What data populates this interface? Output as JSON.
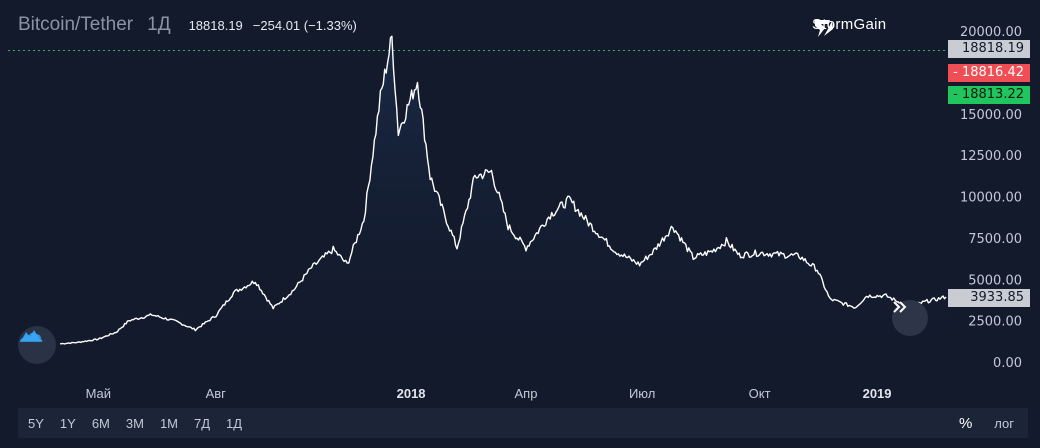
{
  "header": {
    "symbol": "Bitcoin/Tether",
    "interval": "1Д",
    "price": "18818.19",
    "change": "−254.01 (−1.33%)"
  },
  "brand": {
    "name": "StormGain"
  },
  "badges": {
    "last": "18818.19",
    "ask": "- 18816.42",
    "bid": "- 18813.22",
    "current": "3933.85"
  },
  "colors": {
    "background": "#131a2c",
    "line": "#ffffff",
    "area": "#1c3050",
    "ask": "#ef4e55",
    "bid": "#21c55d",
    "last_line": "#3aa86a"
  },
  "timeframes": [
    "5Y",
    "1Y",
    "6M",
    "3M",
    "1M",
    "7Д",
    "1Д"
  ],
  "options": {
    "percent": "%",
    "log": "лог"
  },
  "icons": {
    "scroll": "double-chevron-right-icon",
    "logo": "cloud-logo-icon",
    "brand": "lightning-icon"
  },
  "chart_data": {
    "type": "area",
    "ylim": [
      0,
      20000
    ],
    "y_ticks": [
      "20000.00",
      "15000.00",
      "12500.00",
      "10000.00",
      "7500.00",
      "5000.00",
      "2500.00",
      "0.00"
    ],
    "y_tick_values": [
      20000,
      15000,
      12500,
      10000,
      7500,
      5000,
      2500,
      0
    ],
    "x_ticks": [
      {
        "label": "Май",
        "date": "2017-05-01",
        "bold": false
      },
      {
        "label": "Авг",
        "date": "2017-08-01",
        "bold": false
      },
      {
        "label": "2018",
        "date": "2018-01-01",
        "bold": true
      },
      {
        "label": "Апр",
        "date": "2018-04-01",
        "bold": false
      },
      {
        "label": "Июл",
        "date": "2018-07-01",
        "bold": false
      },
      {
        "label": "Окт",
        "date": "2018-10-01",
        "bold": false
      },
      {
        "label": "2019",
        "date": "2019-01-01",
        "bold": true
      }
    ],
    "xlim": [
      "2017-04-01",
      "2019-02-24"
    ],
    "last_price_line": 18818.19,
    "points": [
      [
        "2017-04-01",
        1100
      ],
      [
        "2017-04-15",
        1190
      ],
      [
        "2017-05-01",
        1380
      ],
      [
        "2017-05-15",
        1800
      ],
      [
        "2017-05-25",
        2500
      ],
      [
        "2017-06-12",
        2850
      ],
      [
        "2017-07-01",
        2450
      ],
      [
        "2017-07-16",
        1950
      ],
      [
        "2017-08-01",
        2800
      ],
      [
        "2017-08-15",
        4200
      ],
      [
        "2017-09-01",
        4900
      ],
      [
        "2017-09-15",
        3250
      ],
      [
        "2017-10-01",
        4350
      ],
      [
        "2017-10-15",
        5700
      ],
      [
        "2017-11-01",
        6800
      ],
      [
        "2017-11-12",
        5900
      ],
      [
        "2017-11-25",
        8600
      ],
      [
        "2017-12-08",
        16000
      ],
      [
        "2017-12-17",
        19600
      ],
      [
        "2017-12-22",
        13900
      ],
      [
        "2018-01-06",
        17000
      ],
      [
        "2018-01-16",
        11200
      ],
      [
        "2018-02-06",
        6900
      ],
      [
        "2018-02-20",
        11200
      ],
      [
        "2018-03-05",
        11500
      ],
      [
        "2018-03-18",
        8200
      ],
      [
        "2018-04-01",
        6900
      ],
      [
        "2018-04-20",
        8900
      ],
      [
        "2018-05-05",
        9800
      ],
      [
        "2018-05-20",
        8400
      ],
      [
        "2018-06-10",
        6700
      ],
      [
        "2018-06-29",
        5900
      ],
      [
        "2018-07-10",
        6700
      ],
      [
        "2018-07-25",
        8200
      ],
      [
        "2018-08-10",
        6300
      ],
      [
        "2018-08-25",
        6700
      ],
      [
        "2018-09-05",
        7300
      ],
      [
        "2018-09-15",
        6450
      ],
      [
        "2018-10-01",
        6600
      ],
      [
        "2018-10-15",
        6500
      ],
      [
        "2018-11-01",
        6400
      ],
      [
        "2018-11-15",
        5600
      ],
      [
        "2018-11-25",
        3800
      ],
      [
        "2018-12-15",
        3300
      ],
      [
        "2018-12-24",
        4000
      ],
      [
        "2019-01-08",
        4000
      ],
      [
        "2019-01-20",
        3550
      ],
      [
        "2019-01-31",
        3450
      ],
      [
        "2019-02-08",
        3650
      ],
      [
        "2019-02-17",
        3800
      ],
      [
        "2019-02-24",
        3933.85
      ]
    ]
  }
}
